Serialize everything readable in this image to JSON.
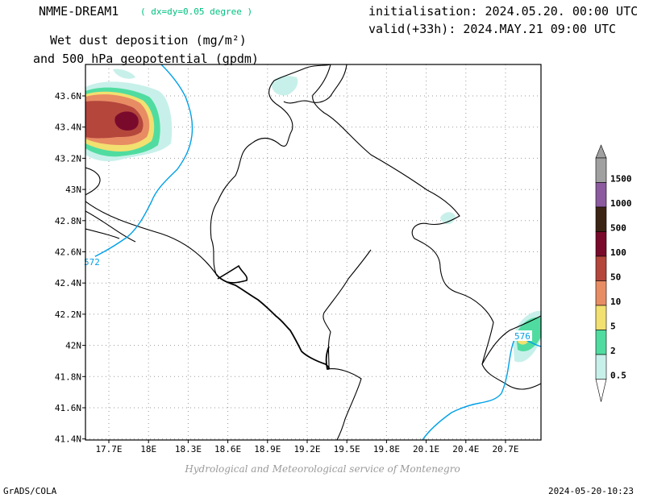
{
  "header": {
    "model": "NMME-DREAM1",
    "resolution": "( dx=dy=0.05 degree )",
    "variable_line1": "Wet dust deposition (mg/m²)",
    "variable_line2": "and 500 hPa geopotential (gpdm)",
    "initialisation": "initialisation: 2024.05.20. 00:00 UTC",
    "valid": "valid(+33h): 2024.MAY.21 09:00 UTC"
  },
  "map": {
    "lat_ticks": [
      "43.6N",
      "43.4N",
      "43.2N",
      "43N",
      "42.8N",
      "42.6N",
      "42.4N",
      "42.2N",
      "42N",
      "41.8N",
      "41.6N",
      "41.4N"
    ],
    "lon_ticks": [
      "17.7E",
      "18E",
      "18.3E",
      "18.6E",
      "18.9E",
      "19.2E",
      "19.5E",
      "19.8E",
      "20.1E",
      "20.4E",
      "20.7E"
    ],
    "contour_labels": [
      "572",
      "576"
    ]
  },
  "legend": {
    "levels": [
      {
        "label": "1500",
        "color": "#a0a0a0"
      },
      {
        "label": "1000",
        "color": "#8c5a9e"
      },
      {
        "label": "500",
        "color": "#3c2414"
      },
      {
        "label": "100",
        "color": "#7a0a2c"
      },
      {
        "label": "50",
        "color": "#b4463c"
      },
      {
        "label": "10",
        "color": "#e88c64"
      },
      {
        "label": "5",
        "color": "#f2e070"
      },
      {
        "label": "2",
        "color": "#50dca0"
      },
      {
        "label": "0.5",
        "color": "#c8f0ea"
      }
    ],
    "top_color": "#a0a0a0",
    "bottom_color": "#ffffff"
  },
  "footer": {
    "credit": "Hydrological and Meteorological service of Montenegro",
    "left": "GrADS/COLA",
    "right": "2024-05-20-10:23"
  },
  "colors": {
    "geopotential": "#00a0e8",
    "coast": "#000000",
    "grid": "#9a9a9a"
  }
}
